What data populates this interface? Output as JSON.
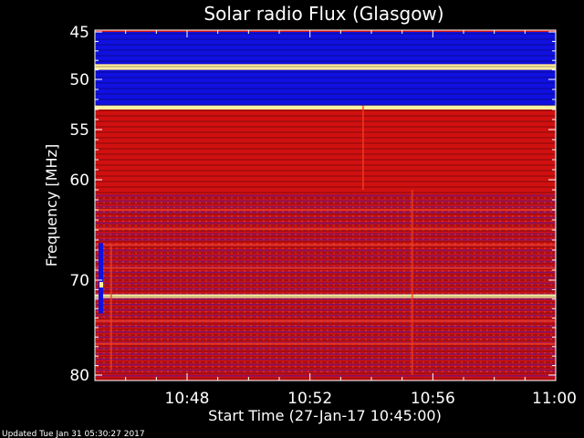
{
  "chart_data": {
    "type": "heatmap",
    "title": "Solar radio Flux (Glasgow)",
    "xlabel": "Start Time (27-Jan-17 10:45:00)",
    "ylabel": "Frequency [MHz]",
    "footer": "Updated Tue Jan 31 05:30:27 2017",
    "x_ticks": [
      "10:48",
      "10:52",
      "10:56",
      "11:00"
    ],
    "x_tick_minutes": [
      48,
      52,
      56,
      60
    ],
    "xlim_minutes": [
      45,
      60
    ],
    "y_ticks": [
      45,
      50,
      55,
      60,
      70,
      80
    ],
    "ylim_mhz": [
      45,
      80
    ],
    "colors": {
      "low": "#1010e0",
      "mid": "#d01010",
      "high": "#f04020",
      "peak": "#fff0a0",
      "background": "#000000"
    },
    "bands": [
      {
        "from": 45.0,
        "to": 48.4,
        "level": "low"
      },
      {
        "from": 48.4,
        "to": 49.0,
        "level": "peak"
      },
      {
        "from": 49.0,
        "to": 52.6,
        "level": "low"
      },
      {
        "from": 52.6,
        "to": 53.0,
        "level": "peak"
      },
      {
        "from": 53.0,
        "to": 61.5,
        "level": "mid"
      },
      {
        "from": 61.5,
        "to": 71.5,
        "level": "mid-low"
      },
      {
        "from": 71.5,
        "to": 71.9,
        "level": "peak"
      },
      {
        "from": 71.9,
        "to": 80.0,
        "level": "mid-low"
      }
    ]
  }
}
